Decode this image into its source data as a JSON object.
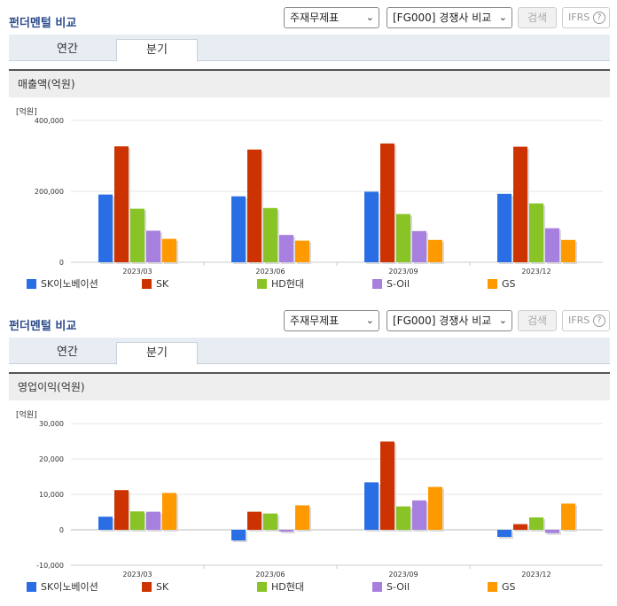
{
  "sections": [
    {
      "title": "펀더멘털 비교",
      "select1": "주재무제표",
      "select2": "[FG000] 경쟁사 비교",
      "search_label": "검색",
      "ifrs_label": "IFRS",
      "ifrs_help": "?",
      "tabs": [
        "연간",
        "분기"
      ],
      "active_tab": "분기",
      "subtitle": "매출액(억원)",
      "unit": "[억원]"
    },
    {
      "title": "펀더멘털 비교",
      "select1": "주재무제표",
      "select2": "[FG000] 경쟁사 비교",
      "search_label": "검색",
      "ifrs_label": "IFRS",
      "ifrs_help": "?",
      "tabs": [
        "연간",
        "분기"
      ],
      "active_tab": "분기",
      "subtitle": "영업이익(억원)",
      "unit": "[억원]"
    }
  ],
  "colors": [
    "#2a6ee6",
    "#cc3300",
    "#88c425",
    "#a77fde",
    "#ff9900"
  ],
  "chart_data": [
    {
      "type": "bar",
      "title": "매출액(억원)",
      "ylabel": "[억원]",
      "categories": [
        "2023/03",
        "2023/06",
        "2023/09",
        "2023/12"
      ],
      "ylim": [
        0,
        400000
      ],
      "yticks": [
        0,
        200000,
        400000
      ],
      "ytick_labels": [
        "0",
        "200,000",
        "400,000"
      ],
      "series": [
        {
          "name": "SK이노베이션",
          "values": [
            191000,
            186000,
            199000,
            193000
          ]
        },
        {
          "name": "SK",
          "values": [
            327000,
            318000,
            335000,
            326000
          ]
        },
        {
          "name": "HD현대",
          "values": [
            151000,
            153000,
            136000,
            166000
          ]
        },
        {
          "name": "S-Oil",
          "values": [
            89000,
            77000,
            88000,
            96000
          ]
        },
        {
          "name": "GS",
          "values": [
            66000,
            61000,
            63000,
            63000
          ]
        }
      ]
    },
    {
      "type": "bar",
      "title": "영업이익(억원)",
      "ylabel": "[억원]",
      "categories": [
        "2023/03",
        "2023/06",
        "2023/09",
        "2023/12"
      ],
      "ylim": [
        -10000,
        30000
      ],
      "yticks": [
        -10000,
        0,
        10000,
        20000,
        30000
      ],
      "ytick_labels": [
        "-10,000",
        "0",
        "10,000",
        "20,000",
        "30,000"
      ],
      "series": [
        {
          "name": "SK이노베이션",
          "values": [
            3700,
            -3000,
            13400,
            -2000
          ]
        },
        {
          "name": "SK",
          "values": [
            11200,
            5100,
            24900,
            1600
          ]
        },
        {
          "name": "HD현대",
          "values": [
            5200,
            4600,
            6600,
            3500
          ]
        },
        {
          "name": "S-Oil",
          "values": [
            5100,
            -500,
            8300,
            -900
          ]
        },
        {
          "name": "GS",
          "values": [
            10400,
            6900,
            12100,
            7400
          ]
        }
      ]
    }
  ]
}
